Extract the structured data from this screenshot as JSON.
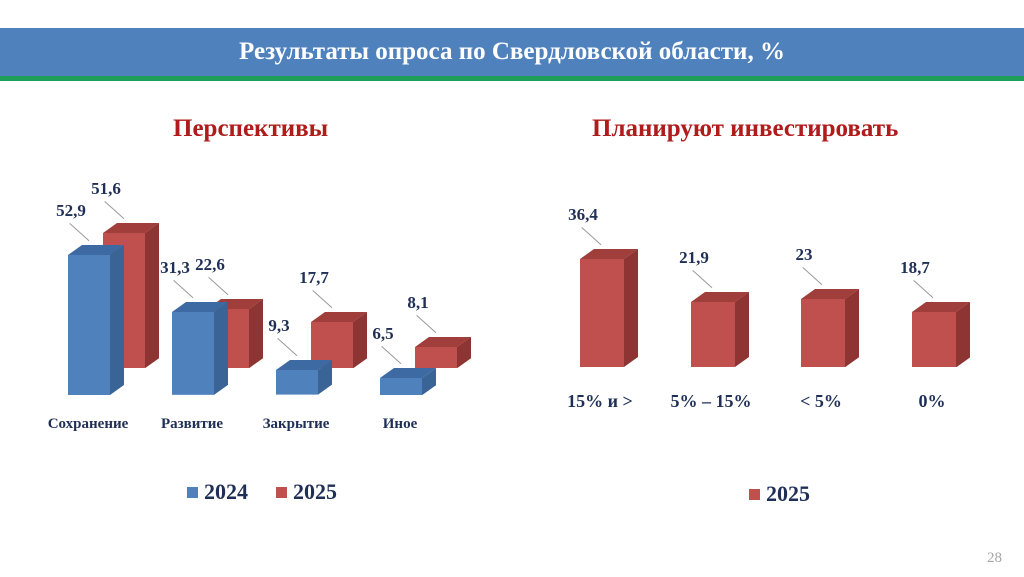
{
  "slide": {
    "title": "Результаты опроса по Свердловской области, %",
    "page_number": "28",
    "colors": {
      "banner": "#4f81bd",
      "banner_border": "#1f9e5a",
      "subtitle": "#b01b1b",
      "blue": "#4f81bd",
      "red": "#c0504d",
      "label": "#1f2f56"
    }
  },
  "left": {
    "subtitle": "Перспективы",
    "legend": [
      {
        "label": "2024",
        "color": "#4f81bd"
      },
      {
        "label": "2025",
        "color": "#c0504d"
      }
    ],
    "categories": [
      "Сохранение",
      "Развитие",
      "Закрытие",
      "Иное"
    ],
    "values_2024": [
      "52,9",
      "31,3",
      "9,3",
      "6,5"
    ],
    "values_2025": [
      "51,6",
      "22,6",
      "17,7",
      "8,1"
    ]
  },
  "right": {
    "subtitle": "Планируют инвестировать",
    "legend": [
      {
        "label": "2025",
        "color": "#c0504d"
      }
    ],
    "categories": [
      "15% и >",
      "5% – 15%",
      "< 5%",
      "0%"
    ],
    "values_2025": [
      "36,4",
      "21,9",
      "23",
      "18,7"
    ]
  },
  "chart_data": [
    {
      "type": "bar",
      "title": "Перспективы",
      "categories": [
        "Сохранение",
        "Развитие",
        "Закрытие",
        "Иное"
      ],
      "series": [
        {
          "name": "2024",
          "values": [
            52.9,
            31.3,
            9.3,
            6.5
          ],
          "color": "#4f81bd"
        },
        {
          "name": "2025",
          "values": [
            51.6,
            22.6,
            17.7,
            8.1
          ],
          "color": "#c0504d"
        }
      ],
      "xlabel": "",
      "ylabel": "%",
      "style": "3d-clustered",
      "legend_position": "bottom",
      "grid": false
    },
    {
      "type": "bar",
      "title": "Планируют инвестировать",
      "categories": [
        "15% и >",
        "5% – 15%",
        "< 5%",
        "0%"
      ],
      "series": [
        {
          "name": "2025",
          "values": [
            36.4,
            21.9,
            23,
            18.7
          ],
          "color": "#c0504d"
        }
      ],
      "xlabel": "",
      "ylabel": "%",
      "style": "3d",
      "legend_position": "bottom",
      "grid": false
    }
  ]
}
